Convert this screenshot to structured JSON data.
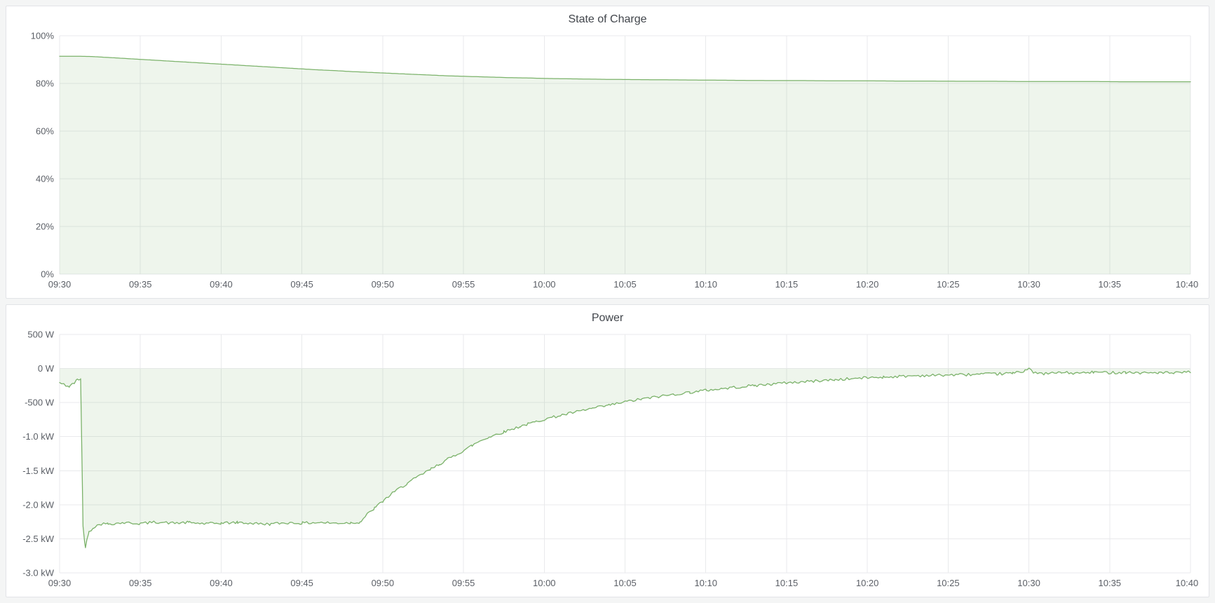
{
  "page": {
    "background": "#f4f5f5"
  },
  "panels": [
    {
      "title": "State of Charge"
    },
    {
      "title": "Power"
    }
  ],
  "chart_data": [
    {
      "type": "area",
      "title": "State of Charge",
      "xlabel": "",
      "ylabel": "",
      "legend": "none",
      "grid": true,
      "grid_color": "#e9eaec",
      "line_color": "#7bb26a",
      "fill_opacity": 0.13,
      "line_width": 1.25,
      "x_range_minutes": [
        0,
        70
      ],
      "ylim": [
        0,
        100
      ],
      "y_ticks": [
        {
          "value": 0,
          "label": "0%"
        },
        {
          "value": 20,
          "label": "20%"
        },
        {
          "value": 40,
          "label": "40%"
        },
        {
          "value": 60,
          "label": "60%"
        },
        {
          "value": 80,
          "label": "80%"
        },
        {
          "value": 100,
          "label": "100%"
        }
      ],
      "x_ticks": [
        {
          "minute": 0,
          "label": "09:30"
        },
        {
          "minute": 5,
          "label": "09:35"
        },
        {
          "minute": 10,
          "label": "09:40"
        },
        {
          "minute": 15,
          "label": "09:45"
        },
        {
          "minute": 20,
          "label": "09:50"
        },
        {
          "minute": 25,
          "label": "09:55"
        },
        {
          "minute": 30,
          "label": "10:00"
        },
        {
          "minute": 35,
          "label": "10:05"
        },
        {
          "minute": 40,
          "label": "10:10"
        },
        {
          "minute": 45,
          "label": "10:15"
        },
        {
          "minute": 50,
          "label": "10:20"
        },
        {
          "minute": 55,
          "label": "10:25"
        },
        {
          "minute": 60,
          "label": "10:30"
        },
        {
          "minute": 65,
          "label": "10:35"
        },
        {
          "minute": 70,
          "label": "10:40"
        }
      ],
      "baseline": 0,
      "noise_amplitude": 0,
      "samples": 540,
      "series": [
        {
          "name": "State of Charge (%)",
          "points": [
            [
              0,
              91.4
            ],
            [
              1,
              91.4
            ],
            [
              2,
              91.3
            ],
            [
              3,
              90.9
            ],
            [
              4,
              90.5
            ],
            [
              5,
              90.1
            ],
            [
              6,
              89.7
            ],
            [
              7,
              89.3
            ],
            [
              8,
              88.9
            ],
            [
              9,
              88.5
            ],
            [
              10,
              88.1
            ],
            [
              11,
              87.7
            ],
            [
              12,
              87.3
            ],
            [
              13,
              86.9
            ],
            [
              14,
              86.5
            ],
            [
              15,
              86.1
            ],
            [
              16,
              85.7
            ],
            [
              17,
              85.4
            ],
            [
              18,
              85.0
            ],
            [
              19,
              84.7
            ],
            [
              20,
              84.4
            ],
            [
              21,
              84.1
            ],
            [
              22,
              83.8
            ],
            [
              23,
              83.5
            ],
            [
              24,
              83.2
            ],
            [
              25,
              83.0
            ],
            [
              26,
              82.8
            ],
            [
              27,
              82.6
            ],
            [
              28,
              82.4
            ],
            [
              29,
              82.3
            ],
            [
              30,
              82.1
            ],
            [
              32,
              81.9
            ],
            [
              34,
              81.7
            ],
            [
              36,
              81.6
            ],
            [
              38,
              81.5
            ],
            [
              40,
              81.4
            ],
            [
              42,
              81.3
            ],
            [
              44,
              81.2
            ],
            [
              46,
              81.2
            ],
            [
              48,
              81.1
            ],
            [
              50,
              81.1
            ],
            [
              52,
              81.0
            ],
            [
              54,
              81.0
            ],
            [
              56,
              80.9
            ],
            [
              58,
              80.9
            ],
            [
              60,
              80.8
            ],
            [
              62,
              80.8
            ],
            [
              64,
              80.8
            ],
            [
              66,
              80.7
            ],
            [
              68,
              80.7
            ],
            [
              70,
              80.7
            ]
          ]
        }
      ]
    },
    {
      "type": "area",
      "title": "Power",
      "xlabel": "",
      "ylabel": "",
      "legend": "none",
      "grid": true,
      "grid_color": "#e9eaec",
      "line_color": "#7bb26a",
      "fill_opacity": 0.13,
      "line_width": 1.3,
      "x_range_minutes": [
        0,
        70
      ],
      "ylim": [
        -3000,
        500
      ],
      "y_ticks": [
        {
          "value": 500,
          "label": "500 W"
        },
        {
          "value": 0,
          "label": "0 W"
        },
        {
          "value": -500,
          "label": "-500 W"
        },
        {
          "value": -1000,
          "label": "-1.0 kW"
        },
        {
          "value": -1500,
          "label": "-1.5 kW"
        },
        {
          "value": -2000,
          "label": "-2.0 kW"
        },
        {
          "value": -2500,
          "label": "-2.5 kW"
        },
        {
          "value": -3000,
          "label": "-3.0 kW"
        }
      ],
      "x_ticks": [
        {
          "minute": 0,
          "label": "09:30"
        },
        {
          "minute": 5,
          "label": "09:35"
        },
        {
          "minute": 10,
          "label": "09:40"
        },
        {
          "minute": 15,
          "label": "09:45"
        },
        {
          "minute": 20,
          "label": "09:50"
        },
        {
          "minute": 25,
          "label": "09:55"
        },
        {
          "minute": 30,
          "label": "10:00"
        },
        {
          "minute": 35,
          "label": "10:05"
        },
        {
          "minute": 40,
          "label": "10:10"
        },
        {
          "minute": 45,
          "label": "10:15"
        },
        {
          "minute": 50,
          "label": "10:20"
        },
        {
          "minute": 55,
          "label": "10:25"
        },
        {
          "minute": 60,
          "label": "10:30"
        },
        {
          "minute": 65,
          "label": "10:35"
        },
        {
          "minute": 70,
          "label": "10:40"
        }
      ],
      "baseline": 0,
      "noise_amplitude": 20,
      "noise_seed": 42,
      "samples": 540,
      "series": [
        {
          "name": "Power (W)",
          "points": [
            [
              0,
              -210
            ],
            [
              0.3,
              -240
            ],
            [
              0.6,
              -265
            ],
            [
              0.9,
              -215
            ],
            [
              1.1,
              -165
            ],
            [
              1.3,
              -150
            ],
            [
              1.45,
              -2320
            ],
            [
              1.6,
              -2630
            ],
            [
              1.8,
              -2400
            ],
            [
              2.1,
              -2330
            ],
            [
              2.6,
              -2280
            ],
            [
              3,
              -2280
            ],
            [
              4,
              -2265
            ],
            [
              5,
              -2275
            ],
            [
              6,
              -2255
            ],
            [
              7,
              -2270
            ],
            [
              8,
              -2260
            ],
            [
              9,
              -2280
            ],
            [
              10,
              -2270
            ],
            [
              11,
              -2260
            ],
            [
              12,
              -2275
            ],
            [
              13,
              -2285
            ],
            [
              14,
              -2265
            ],
            [
              15,
              -2270
            ],
            [
              16,
              -2260
            ],
            [
              17,
              -2270
            ],
            [
              18,
              -2265
            ],
            [
              18.6,
              -2255
            ],
            [
              19,
              -2150
            ],
            [
              19.5,
              -2050
            ],
            [
              20,
              -1950
            ],
            [
              20.5,
              -1850
            ],
            [
              21,
              -1765
            ],
            [
              21.5,
              -1690
            ],
            [
              22,
              -1615
            ],
            [
              22.5,
              -1545
            ],
            [
              23,
              -1475
            ],
            [
              23.5,
              -1405
            ],
            [
              24,
              -1335
            ],
            [
              24.5,
              -1270
            ],
            [
              25,
              -1205
            ],
            [
              25.5,
              -1135
            ],
            [
              26,
              -1065
            ],
            [
              26.5,
              -1015
            ],
            [
              27,
              -970
            ],
            [
              27.5,
              -930
            ],
            [
              28,
              -890
            ],
            [
              28.5,
              -850
            ],
            [
              29,
              -815
            ],
            [
              29.5,
              -780
            ],
            [
              30,
              -745
            ],
            [
              31,
              -690
            ],
            [
              32,
              -635
            ],
            [
              33,
              -585
            ],
            [
              34,
              -540
            ],
            [
              35,
              -490
            ],
            [
              36,
              -450
            ],
            [
              37,
              -415
            ],
            [
              38,
              -380
            ],
            [
              39,
              -350
            ],
            [
              40,
              -320
            ],
            [
              41,
              -295
            ],
            [
              42,
              -272
            ],
            [
              43,
              -250
            ],
            [
              44,
              -230
            ],
            [
              45,
              -210
            ],
            [
              46,
              -195
            ],
            [
              47,
              -180
            ],
            [
              48,
              -165
            ],
            [
              49,
              -150
            ],
            [
              50,
              -135
            ],
            [
              51,
              -125
            ],
            [
              52,
              -115
            ],
            [
              53,
              -105
            ],
            [
              54,
              -100
            ],
            [
              55,
              -95
            ],
            [
              56,
              -90
            ],
            [
              57,
              -85
            ],
            [
              58,
              -80
            ],
            [
              59,
              -70
            ],
            [
              59.7,
              -40
            ],
            [
              60,
              20
            ],
            [
              60.3,
              -70
            ],
            [
              61,
              -75
            ],
            [
              62,
              -60
            ],
            [
              63,
              -70
            ],
            [
              64,
              -55
            ],
            [
              65,
              -60
            ],
            [
              66,
              -55
            ],
            [
              67,
              -65
            ],
            [
              68,
              -60
            ],
            [
              69,
              -70
            ],
            [
              70,
              -50
            ]
          ]
        }
      ]
    }
  ]
}
